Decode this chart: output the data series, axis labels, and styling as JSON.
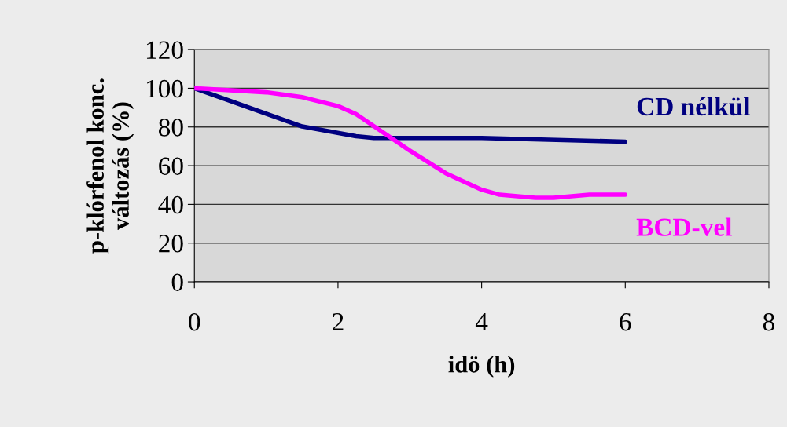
{
  "chart_data": {
    "type": "line",
    "xlabel": "idö (h)",
    "ylabel": "p-klórfenol konc.\nváltozás (%)",
    "series": [
      {
        "name": "CD nélkül",
        "color": "#000080",
        "x": [
          0,
          1.5,
          2.25,
          2.5,
          4,
          6
        ],
        "values": [
          100,
          80.3,
          75.2,
          74.3,
          74.3,
          72.4
        ]
      },
      {
        "name": "BCD-vel",
        "color": "#ff00ff",
        "x": [
          0,
          1,
          1.5,
          2,
          2.25,
          3,
          3.5,
          4,
          4.25,
          4.75,
          5,
          5.5,
          6
        ],
        "values": [
          100,
          97.9,
          95.4,
          90.8,
          86.7,
          67.8,
          56.1,
          47.6,
          45,
          43.4,
          43.4,
          45,
          45
        ]
      }
    ],
    "xlim": [
      0,
      8
    ],
    "xticks": [
      0,
      2,
      4,
      6,
      8
    ],
    "ylim": [
      0,
      120
    ],
    "yticks": [
      0,
      20,
      40,
      60,
      80,
      100,
      120
    ],
    "grid": "y",
    "legend": false,
    "marker": "none",
    "line_style": "solid"
  }
}
